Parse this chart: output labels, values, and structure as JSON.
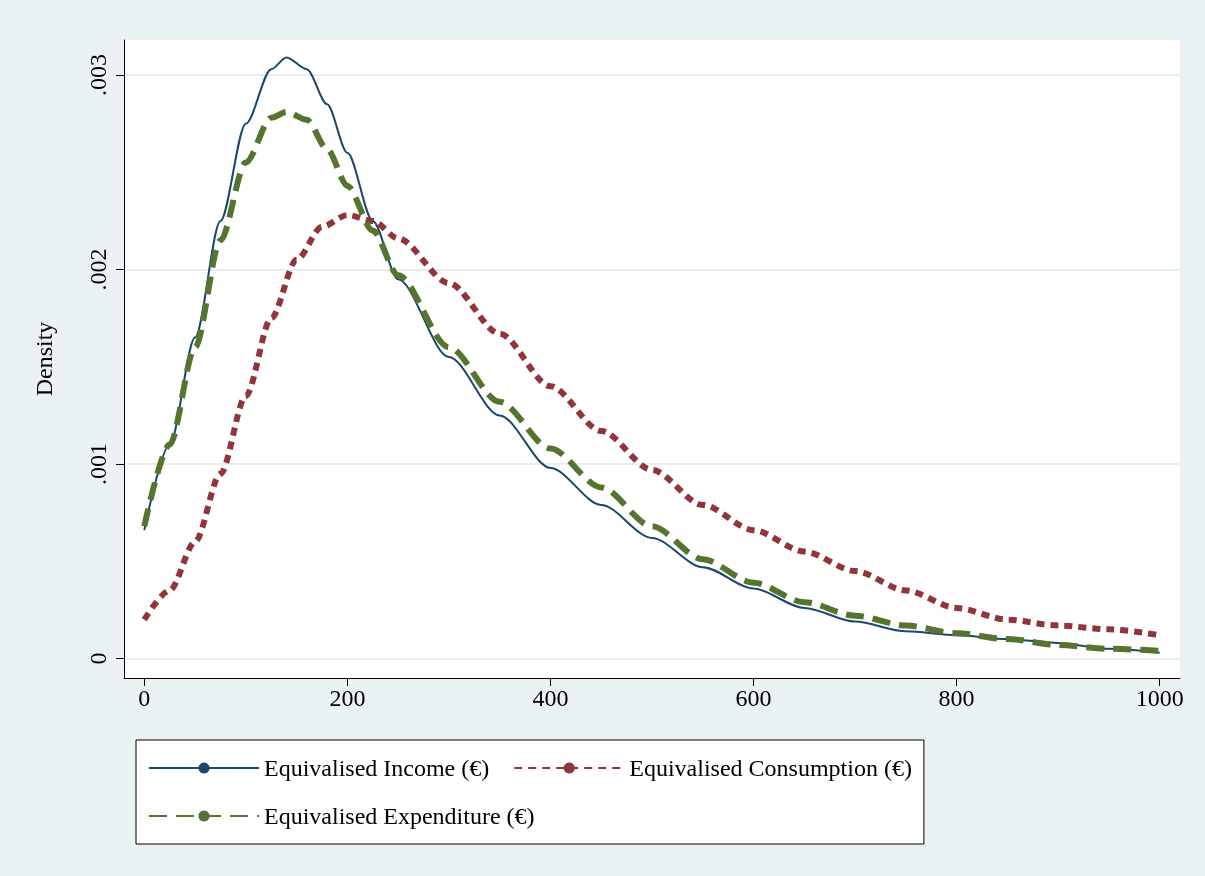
{
  "chart_data": {
    "type": "line",
    "ylabel": "Density",
    "xlim": [
      -20,
      1020
    ],
    "xticks": [
      0,
      200,
      400,
      600,
      800,
      1000
    ],
    "ylim": [
      -0.0001,
      0.00318
    ],
    "yticks": [
      0,
      {
        "value": 0.001,
        "label": ".001"
      },
      {
        "value": 0.002,
        "label": ".002"
      },
      {
        "value": 0.003,
        "label": ".003"
      }
    ],
    "grid": "y",
    "legend": "bottom",
    "series": [
      {
        "name": "Equivalised Income (€)",
        "color": "#1a476f",
        "line_style": "solid",
        "x": [
          0,
          25,
          50,
          75,
          100,
          125,
          140,
          160,
          180,
          200,
          225,
          250,
          300,
          350,
          400,
          450,
          500,
          550,
          600,
          650,
          700,
          750,
          800,
          850,
          900,
          950,
          1000
        ],
        "values": [
          0.00066,
          0.0011,
          0.00165,
          0.00225,
          0.00275,
          0.00303,
          0.00309,
          0.00303,
          0.00285,
          0.0026,
          0.00225,
          0.00195,
          0.00155,
          0.00125,
          0.00098,
          0.00079,
          0.00062,
          0.00047,
          0.00036,
          0.00026,
          0.00019,
          0.00014,
          0.00012,
          0.0001,
          8e-05,
          5e-05,
          3e-05
        ]
      },
      {
        "name": "Equivalised Consumption (€)",
        "color": "#90353b",
        "line_style": "dotted",
        "x": [
          0,
          25,
          50,
          75,
          100,
          125,
          150,
          175,
          200,
          225,
          250,
          300,
          350,
          400,
          450,
          500,
          550,
          600,
          650,
          700,
          750,
          800,
          850,
          900,
          950,
          1000
        ],
        "values": [
          0.0002,
          0.00035,
          0.0006,
          0.00095,
          0.00135,
          0.00175,
          0.00205,
          0.00222,
          0.00228,
          0.00225,
          0.00216,
          0.00193,
          0.00167,
          0.0014,
          0.00117,
          0.00097,
          0.00079,
          0.00066,
          0.00055,
          0.00045,
          0.00035,
          0.00026,
          0.0002,
          0.00017,
          0.00015,
          0.00012
        ]
      },
      {
        "name": "Equivalised Expenditure (€)",
        "color": "#55752f",
        "line_style": "dashed",
        "x": [
          0,
          25,
          50,
          75,
          100,
          125,
          140,
          160,
          180,
          200,
          225,
          250,
          300,
          350,
          400,
          450,
          500,
          550,
          600,
          650,
          700,
          750,
          800,
          850,
          900,
          950,
          1000
        ],
        "values": [
          0.00068,
          0.0011,
          0.0016,
          0.00215,
          0.00255,
          0.00278,
          0.00281,
          0.00277,
          0.00262,
          0.00243,
          0.0022,
          0.00197,
          0.0016,
          0.00132,
          0.00108,
          0.00088,
          0.00068,
          0.00051,
          0.00039,
          0.00029,
          0.00022,
          0.00017,
          0.00013,
          0.0001,
          7e-05,
          5e-05,
          4e-05
        ]
      }
    ]
  }
}
